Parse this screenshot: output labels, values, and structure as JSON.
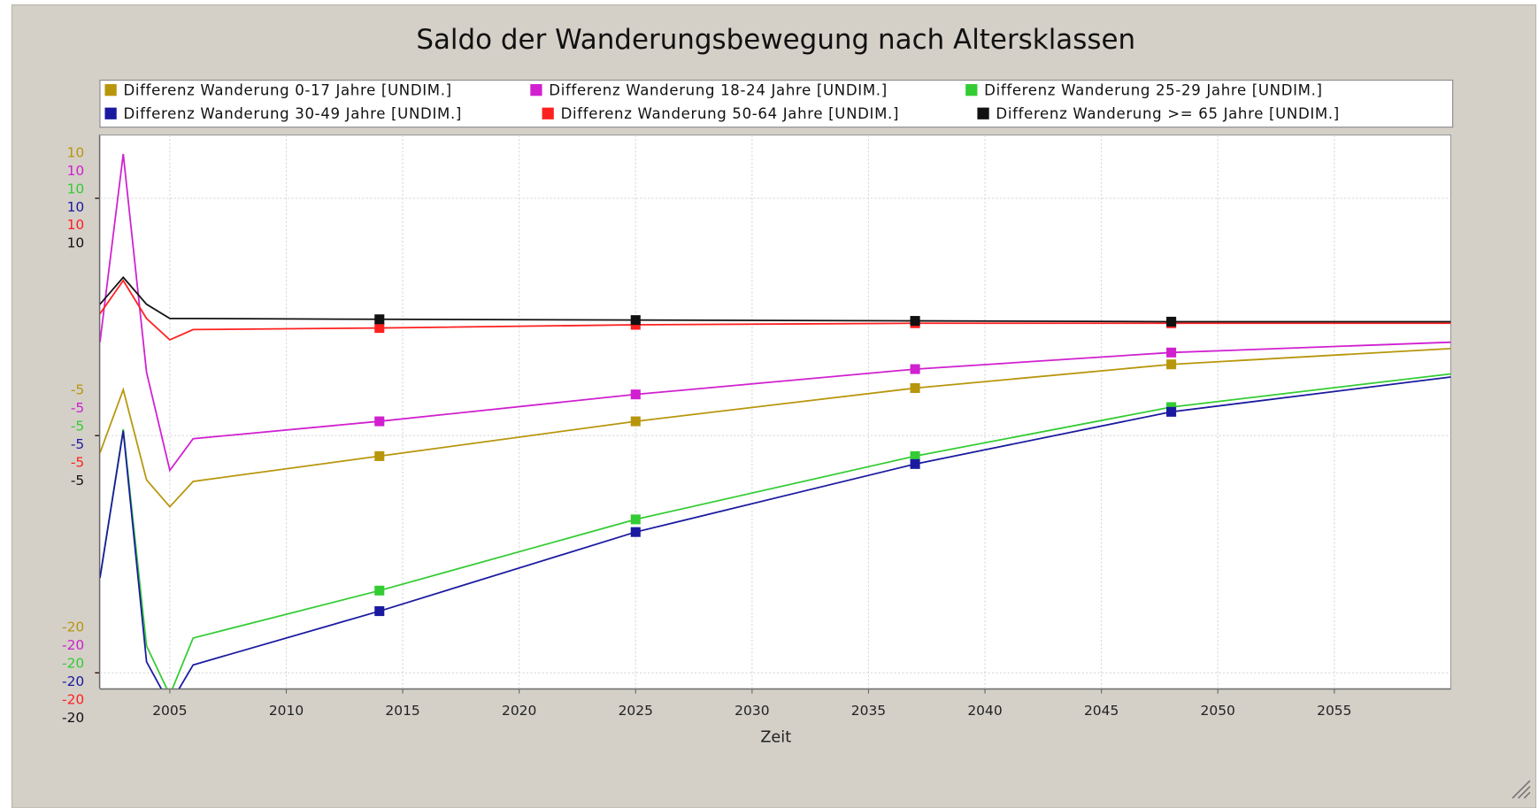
{
  "chart_data": {
    "type": "line",
    "title": "Saldo der Wanderungsbewegung nach Altersklassen",
    "xlabel": "Zeit",
    "x": [
      2002,
      2003,
      2004,
      2005,
      2006,
      2014,
      2025,
      2037,
      2048,
      2060
    ],
    "xlim": [
      2002,
      2060
    ],
    "xticks": [
      2005,
      2010,
      2015,
      2020,
      2025,
      2030,
      2035,
      2040,
      2045,
      2050,
      2055
    ],
    "ylim": [
      -21,
      14
    ],
    "grid": true,
    "series": [
      {
        "name": "Differenz Wanderung 0-17 Jahre [UNDIM.]",
        "color": "#b8960c",
        "yticks": [
          10,
          -5,
          -20
        ],
        "values": [
          -6.1,
          -2.1,
          -7.8,
          -9.5,
          -7.9,
          -6.3,
          -4.1,
          -2.0,
          -0.5,
          0.5
        ]
      },
      {
        "name": "Differenz Wanderung 18-24 Jahre [UNDIM.]",
        "color": "#d020d0",
        "yticks": [
          10,
          -5,
          -20
        ],
        "values": [
          0.9,
          12.8,
          -1.0,
          -7.2,
          -5.2,
          -4.1,
          -2.4,
          -0.8,
          0.25,
          0.9
        ]
      },
      {
        "name": "Differenz Wanderung 25-29 Jahre [UNDIM.]",
        "color": "#33cc33",
        "yticks": [
          10,
          -5,
          -20
        ],
        "values": [
          -14.0,
          -4.6,
          -18.3,
          -21.4,
          -17.8,
          -14.8,
          -10.3,
          -6.3,
          -3.2,
          -1.1
        ]
      },
      {
        "name": "Differenz Wanderung 30-49 Jahre [UNDIM.]",
        "color": "#1a1aa0",
        "yticks": [
          10,
          -5,
          -20
        ],
        "values": [
          -14.0,
          -4.7,
          -19.3,
          -22.0,
          -19.5,
          -16.1,
          -11.1,
          -6.8,
          -3.5,
          -1.3
        ]
      },
      {
        "name": "Differenz Wanderung 50-64 Jahre [UNDIM.]",
        "color": "#ff2020",
        "yticks": [
          10,
          -5,
          -20
        ],
        "values": [
          2.7,
          4.8,
          2.4,
          1.05,
          1.7,
          1.8,
          2.0,
          2.1,
          2.1,
          2.1
        ]
      },
      {
        "name": "Differenz Wanderung >= 65 Jahre [UNDIM.]",
        "color": "#111111",
        "yticks": [
          10,
          -5,
          -20
        ],
        "values": [
          3.3,
          5.0,
          3.3,
          2.4,
          2.4,
          2.35,
          2.3,
          2.25,
          2.2,
          2.2
        ]
      }
    ]
  }
}
